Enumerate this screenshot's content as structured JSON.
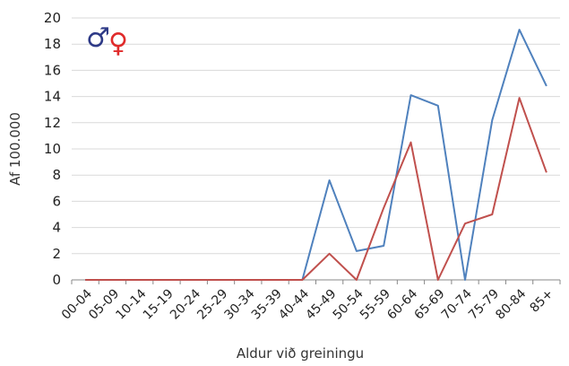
{
  "chart_data": {
    "type": "line",
    "xlabel": "Aldur við greiningu",
    "ylabel": "Af 100.000",
    "ylim": [
      0,
      20
    ],
    "yticks": [
      "0",
      "2",
      "4",
      "6",
      "8",
      "10",
      "12",
      "14",
      "16",
      "18",
      "20"
    ],
    "grid": "horizontal",
    "categories": [
      "00-04",
      "05-09",
      "10-14",
      "15-19",
      "20-24",
      "25-29",
      "30-34",
      "35-39",
      "40-44",
      "45-49",
      "50-54",
      "55-59",
      "60-64",
      "65-69",
      "70-74",
      "75-79",
      "80-84",
      "85+"
    ],
    "legend": {
      "male_symbol": "♂",
      "female_symbol": "♀",
      "placement": "top-left"
    },
    "series": [
      {
        "id": "male",
        "color": "#4f81bd",
        "values": [
          0,
          0,
          0,
          0,
          0,
          0,
          0,
          0,
          0,
          7.6,
          2.2,
          2.6,
          14.1,
          13.3,
          0,
          12.2,
          19.1,
          14.8
        ]
      },
      {
        "id": "female",
        "color": "#c0504d",
        "values": [
          0,
          0,
          0,
          0,
          0,
          0,
          0,
          0,
          0,
          2.0,
          0,
          5.5,
          10.5,
          0,
          4.3,
          5.0,
          13.9,
          8.2
        ]
      }
    ]
  },
  "colors": {
    "male_symbol": "#2e3a87",
    "female_symbol": "#e02b2b",
    "grid": "#d9d9d9",
    "axis": "#888888"
  }
}
